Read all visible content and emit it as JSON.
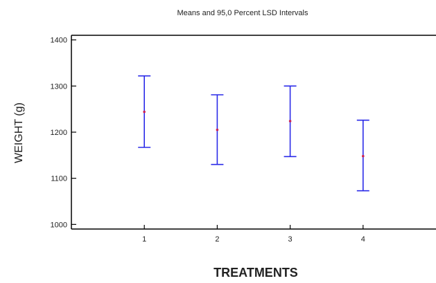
{
  "chart_data": {
    "type": "error-bar",
    "title": "Means and 95,0 Percent LSD Intervals",
    "xlabel": "TREATMENTS",
    "ylabel": "WEIGHT (g)",
    "ylim": [
      990,
      1410
    ],
    "xlim": [
      0,
      5
    ],
    "y_ticks": [
      1000,
      1100,
      1200,
      1300,
      1400
    ],
    "categories": [
      "1",
      "2",
      "3",
      "4"
    ],
    "means": [
      1244,
      1205,
      1224,
      1148
    ],
    "lower": [
      1167,
      1130,
      1147,
      1073
    ],
    "upper": [
      1322,
      1281,
      1300,
      1226
    ],
    "grid": false,
    "colors": {
      "interval": "#2a2ae8",
      "mean": "#cc2255",
      "axis": "#000000"
    }
  }
}
